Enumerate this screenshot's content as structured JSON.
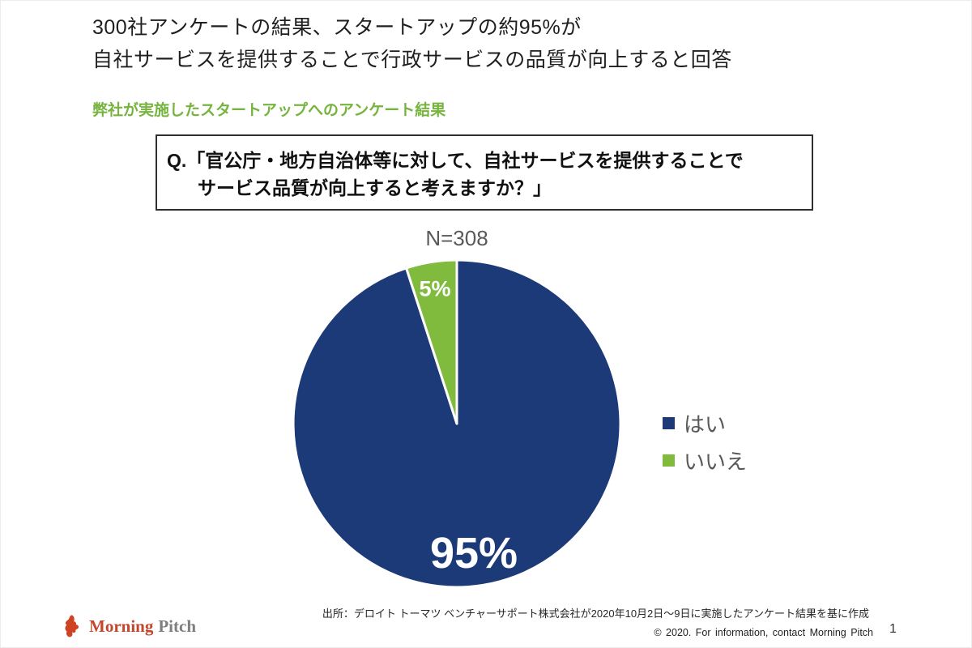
{
  "slide": {
    "title_line1": "300社アンケートの結果、スタートアップの約95%が",
    "title_line2": "自社サービスを提供することで行政サービスの品質が向上すると回答",
    "subtitle": "弊社が実施したスタートアップへのアンケート結果",
    "question": {
      "line1": "Q.「官公庁・地方自治体等に対して、自社サービスを提供することで",
      "line2": "サービス品質が向上すると考えますか？」"
    },
    "source": "出所：デロイト トーマツ ベンチャーサポート株式会社が2020年10月2日～9日に実施したアンケート結果を基に作成",
    "footer": {
      "brand_morning": "Morning",
      "brand_pitch": "Pitch",
      "copyright": "© 2020. For information, contact Morning Pitch",
      "page_number": "1"
    },
    "colors": {
      "title_text": "#1f1f1f",
      "subtitle_green": "#77b43f",
      "logo_orange": "#c2472e",
      "logo_gray": "#7e7e7e",
      "muted_gray_text": "#595959"
    }
  },
  "chart_data": {
    "type": "pie",
    "sample_label": "N=308",
    "sample_size": 308,
    "categories": [
      "はい",
      "いいえ"
    ],
    "values": [
      95,
      5
    ],
    "unit": "%",
    "colors": [
      "#1c3a78",
      "#81bb3d"
    ],
    "slice_labels": [
      "95%",
      "5%"
    ],
    "start_angle_deg": 0,
    "direction": "clockwise",
    "legend_position": "right",
    "slice_border_color": "#ffffff"
  }
}
